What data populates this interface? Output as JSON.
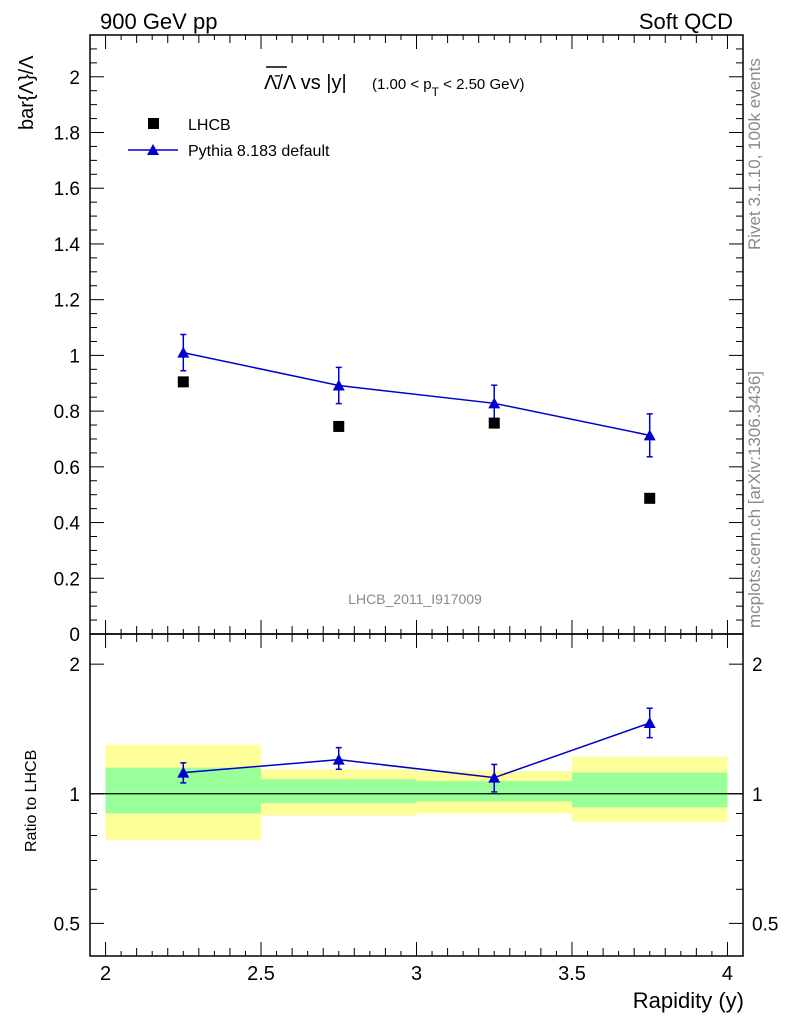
{
  "header": {
    "left": "900 GeV pp",
    "right": "Soft QCD"
  },
  "side_labels": {
    "rivet": "Rivet 3.1.10,  100k events",
    "mcplots": "mcplots.cern.ch [arXiv:1306.3436]"
  },
  "watermark": "LHCB_2011_I917009",
  "colors": {
    "mc": "#0000cc",
    "data": "#000000",
    "band_inner": "#99ff99",
    "band_outer": "#ffff99"
  },
  "chart_data": {
    "type": "scatter",
    "title_main": "Λ̄/Λ vs |y|",
    "title_sub": "(1.00 < p",
    "title_sub_index": "T",
    "title_sub_end": " < 2.50 GeV)",
    "ylabel": "bar{Λ}/Λ",
    "xlabel": "Rapidity (y)",
    "ratio_ylabel": "Ratio to LHCB",
    "xlim": [
      1.95,
      4.05
    ],
    "ylim": [
      0,
      2.15
    ],
    "ratio_ylim": [
      0.42,
      2.35
    ],
    "x_ticks": [
      "2",
      "2.5",
      "3",
      "3.5",
      "4"
    ],
    "x_tick_values": [
      2,
      2.5,
      3,
      3.5,
      4
    ],
    "y_ticks": [
      "0",
      "0.2",
      "0.4",
      "0.6",
      "0.8",
      "1",
      "1.2",
      "1.4",
      "1.6",
      "1.8",
      "2"
    ],
    "y_tick_values": [
      0,
      0.2,
      0.4,
      0.6,
      0.8,
      1.0,
      1.2,
      1.4,
      1.6,
      1.8,
      2.0
    ],
    "ratio_ticks": [
      "0.5",
      "1",
      "2"
    ],
    "ratio_tick_values": [
      0.5,
      1,
      2
    ],
    "legend": {
      "data": "LHCB",
      "mc": "Pythia 8.183 default",
      "position": "top-left"
    },
    "data_series": {
      "name": "LHCB",
      "x": [
        2.25,
        2.75,
        3.25,
        3.75
      ],
      "y": [
        0.905,
        0.745,
        0.757,
        0.487
      ]
    },
    "mc_series": {
      "name": "Pythia 8.183 default",
      "x": [
        2.25,
        2.75,
        3.25,
        3.75
      ],
      "y": [
        1.01,
        0.892,
        0.828,
        0.713
      ],
      "err": [
        0.065,
        0.065,
        0.065,
        0.077
      ]
    },
    "ratio": {
      "bins": [
        [
          2.0,
          2.5
        ],
        [
          2.5,
          3.0
        ],
        [
          3.0,
          3.5
        ],
        [
          3.5,
          4.0
        ]
      ],
      "inner": [
        [
          0.9,
          1.15
        ],
        [
          0.95,
          1.08
        ],
        [
          0.96,
          1.07
        ],
        [
          0.93,
          1.12
        ]
      ],
      "outer": [
        [
          0.78,
          1.3
        ],
        [
          0.89,
          1.14
        ],
        [
          0.9,
          1.13
        ],
        [
          0.86,
          1.22
        ]
      ],
      "mc": [
        1.12,
        1.2,
        1.09,
        1.46
      ],
      "mc_err_lo": [
        0.06,
        0.06,
        0.08,
        0.11
      ],
      "mc_err_hi": [
        0.06,
        0.08,
        0.08,
        0.12
      ]
    }
  }
}
